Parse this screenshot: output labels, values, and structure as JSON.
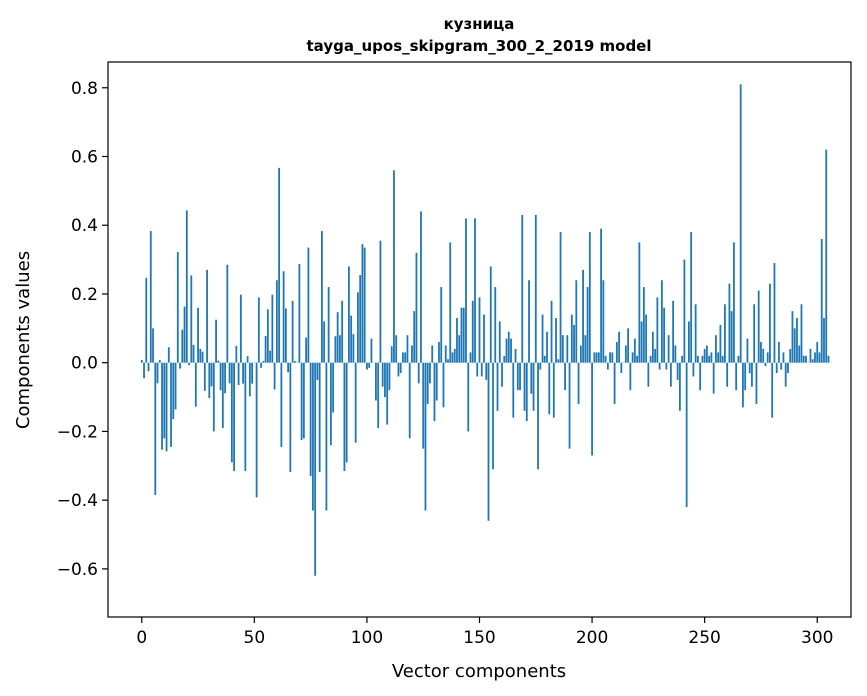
{
  "chart_data": {
    "type": "bar",
    "title": "кузница",
    "subtitle": "tayga_upos_skipgram_300_2_2019 model",
    "xlabel": "Vector components",
    "ylabel": "Components values",
    "xlim": [
      -15,
      315
    ],
    "ylim": [
      -0.74,
      0.875
    ],
    "xticks": [
      0,
      50,
      100,
      150,
      200,
      250,
      300
    ],
    "yticks": [
      -0.6,
      -0.4,
      -0.2,
      0.0,
      0.2,
      0.4,
      0.6,
      0.8
    ],
    "ytick_labels": [
      "−0.6",
      "−0.4",
      "−0.2",
      "0.0",
      "0.2",
      "0.4",
      "0.6",
      "0.8"
    ],
    "bar_color": "#1f77b4",
    "grid": false,
    "legend": "none",
    "values": [
      0.008,
      -0.045,
      0.247,
      -0.025,
      0.383,
      0.1,
      -0.385,
      -0.06,
      0.008,
      -0.253,
      -0.22,
      -0.258,
      0.045,
      -0.245,
      -0.164,
      -0.136,
      0.322,
      -0.017,
      0.096,
      0.163,
      0.443,
      -0.007,
      0.254,
      0.052,
      -0.128,
      0.16,
      0.04,
      0.032,
      -0.082,
      0.27,
      -0.103,
      -0.069,
      -0.2,
      0.125,
      0.006,
      -0.08,
      -0.19,
      -0.089,
      0.285,
      -0.06,
      -0.29,
      -0.315,
      0.049,
      -0.065,
      0.198,
      -0.061,
      -0.315,
      0.019,
      -0.098,
      -0.061,
      0.0,
      -0.392,
      0.19,
      -0.015,
      0.005,
      0.078,
      0.155,
      0.035,
      0.198,
      -0.078,
      0.24,
      0.567,
      -0.245,
      0.266,
      0.158,
      -0.028,
      -0.318,
      0.18,
      0.005,
      0.0,
      0.287,
      -0.225,
      -0.22,
      0.073,
      0.335,
      -0.33,
      -0.43,
      -0.62,
      -0.05,
      -0.318,
      0.383,
      0.12,
      -0.43,
      0.22,
      -0.24,
      -0.145,
      0.077,
      0.147,
      0.08,
      0.18,
      -0.315,
      -0.29,
      0.28,
      0.137,
      0.083,
      -0.233,
      0.205,
      0.255,
      0.345,
      0.335,
      -0.02,
      -0.015,
      0.07,
      0.0,
      -0.11,
      -0.19,
      0.355,
      -0.07,
      -0.1,
      -0.18,
      -0.08,
      0.048,
      0.56,
      0.08,
      -0.04,
      -0.03,
      0.03,
      0.03,
      0.08,
      -0.22,
      0.05,
      0.15,
      0.32,
      -0.06,
      0.44,
      -0.25,
      -0.43,
      -0.12,
      -0.06,
      0.05,
      -0.17,
      -0.11,
      0.06,
      0.22,
      -0.13,
      0.05,
      0.01,
      0.35,
      0.03,
      0.04,
      0.13,
      0.08,
      0.16,
      0.16,
      0.42,
      -0.2,
      0.03,
      0.18,
      0.42,
      -0.04,
      0.19,
      -0.04,
      0.14,
      -0.05,
      -0.46,
      0.28,
      -0.31,
      0.22,
      -0.14,
      0.12,
      -0.07,
      0.02,
      0.07,
      0.09,
      0.07,
      -0.16,
      0.04,
      -0.08,
      -0.08,
      0.43,
      -0.14,
      -0.17,
      0.24,
      -0.09,
      -0.14,
      0.43,
      -0.31,
      -0.02,
      0.14,
      0.02,
      0.09,
      -0.15,
      0.18,
      -0.16,
      0.13,
      0.01,
      0.38,
      0.08,
      -0.08,
      0.08,
      -0.25,
      0.14,
      0.11,
      0.24,
      -0.12,
      0.05,
      0.27,
      0.08,
      0.22,
      0.38,
      -0.27,
      0.03,
      0.03,
      0.03,
      0.39,
      0.24,
      0.02,
      -0.02,
      0.03,
      0.03,
      -0.12,
      0.06,
      0.09,
      -0.03,
      0.0,
      0.05,
      0.1,
      -0.08,
      0.03,
      0.07,
      0.02,
      0.35,
      0.12,
      0.22,
      0.14,
      -0.07,
      0.02,
      0.09,
      0.04,
      0.19,
      -0.02,
      0.24,
      0.16,
      -0.02,
      0.08,
      -0.07,
      0.18,
      0.05,
      -0.05,
      -0.14,
      0.02,
      0.3,
      -0.42,
      0.12,
      0.38,
      -0.04,
      0.17,
      0.02,
      -0.08,
      0.02,
      0.04,
      0.05,
      0.02,
      0.03,
      -0.09,
      0.08,
      0.03,
      0.11,
      0.02,
      0.17,
      -0.07,
      0.23,
      0.15,
      0.35,
      -0.08,
      0.02,
      0.81,
      -0.13,
      -0.08,
      0.07,
      -0.03,
      -0.07,
      0.17,
      -0.12,
      0.21,
      0.06,
      0.04,
      -0.01,
      0.03,
      0.23,
      -0.16,
      0.29,
      -0.03,
      0.06,
      -0.02,
      0.03,
      -0.07,
      -0.03,
      0.04,
      0.15,
      0.1,
      0.13,
      0.05,
      0.17,
      0.02,
      0.02,
      0.0,
      0.04,
      0.01,
      0.03,
      0.06,
      0.03,
      0.36,
      0.13,
      0.62,
      0.02
    ]
  }
}
